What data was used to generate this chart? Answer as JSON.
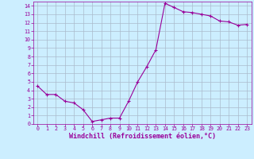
{
  "x": [
    0,
    1,
    2,
    3,
    4,
    5,
    6,
    7,
    8,
    9,
    10,
    11,
    12,
    13,
    14,
    15,
    16,
    17,
    18,
    19,
    20,
    21,
    22,
    23
  ],
  "y": [
    4.5,
    3.5,
    3.5,
    2.7,
    2.5,
    1.7,
    0.3,
    0.5,
    0.7,
    0.7,
    2.7,
    5.0,
    6.8,
    8.8,
    14.3,
    13.8,
    13.3,
    13.2,
    13.0,
    12.8,
    12.2,
    12.1,
    11.7,
    11.8
  ],
  "xlim": [
    -0.5,
    23.5
  ],
  "ylim": [
    0,
    14.5
  ],
  "yticks": [
    0,
    1,
    2,
    3,
    4,
    5,
    6,
    7,
    8,
    9,
    10,
    11,
    12,
    13,
    14
  ],
  "xticks": [
    0,
    1,
    2,
    3,
    4,
    5,
    6,
    7,
    8,
    9,
    10,
    11,
    12,
    13,
    14,
    15,
    16,
    17,
    18,
    19,
    20,
    21,
    22,
    23
  ],
  "xlabel": "Windchill (Refroidissement éolien,°C)",
  "line_color": "#990099",
  "marker": "+",
  "bg_color": "#cceeff",
  "grid_color": "#aabbcc",
  "tick_fontsize": 4.8,
  "xlabel_fontsize": 6.0,
  "font_family": "monospace"
}
